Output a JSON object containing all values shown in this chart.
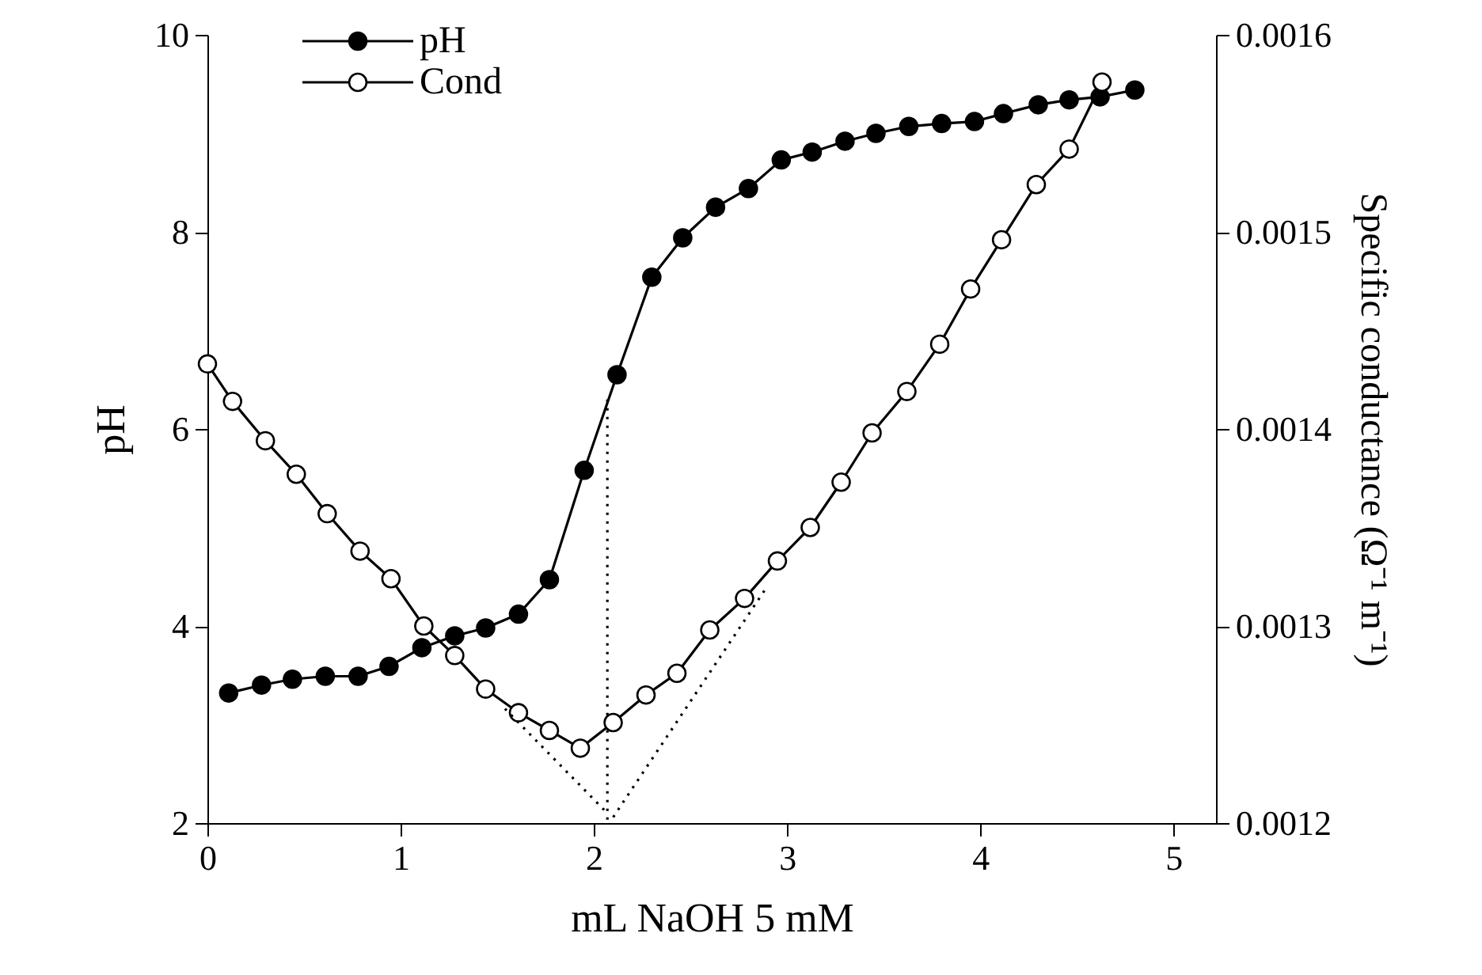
{
  "chart_data": {
    "type": "line",
    "xlabel": "mL NaOH 5 mM",
    "ylabel": "pH",
    "y2label": "Specific conductance  (Ω⁻¹ m⁻¹)",
    "xlim": [
      0,
      5.22
    ],
    "xticks": [
      0,
      1,
      2,
      3,
      4,
      5
    ],
    "ylim": [
      2,
      10
    ],
    "yticks": [
      2,
      4,
      6,
      8,
      10
    ],
    "y2lim": [
      0.0012,
      0.0016
    ],
    "y2ticks": [
      0.0012,
      0.0013,
      0.0014,
      0.0015,
      0.0016
    ],
    "grid": false,
    "legend": "top left",
    "marker": "circle",
    "line_style": "solid",
    "series": [
      {
        "name": "pH",
        "color": "#000000",
        "x": [
          0.11,
          0.28,
          0.44,
          0.61,
          0.78,
          0.94,
          1.11,
          1.28,
          1.44,
          1.61,
          1.77,
          1.95,
          2.12,
          2.3,
          2.46,
          2.63,
          2.8,
          2.97,
          3.13,
          3.3,
          3.46,
          3.63,
          3.8,
          3.97,
          4.12,
          4.3,
          4.46,
          4.62,
          4.8
        ],
        "values": [
          3.32,
          3.4,
          3.46,
          3.49,
          3.49,
          3.59,
          3.78,
          3.9,
          3.98,
          4.12,
          4.47,
          5.58,
          6.55,
          7.54,
          7.94,
          8.25,
          8.44,
          8.73,
          8.81,
          8.92,
          9.0,
          9.07,
          9.1,
          9.12,
          9.2,
          9.29,
          9.34,
          9.37,
          9.44
        ]
      },
      {
        "name": "Cond",
        "color": "#000000",
        "axis": "y2",
        "x": [
          0.0,
          0.13,
          0.3,
          0.46,
          0.62,
          0.79,
          0.95,
          1.12,
          1.28,
          1.44,
          1.61,
          1.77,
          1.93,
          2.1,
          2.27,
          2.43,
          2.6,
          2.78,
          2.95,
          3.12,
          3.28,
          3.44,
          3.62,
          3.79,
          3.95,
          4.11,
          4.29,
          4.46,
          4.63
        ],
        "values": [
          0.001433,
          0.001414,
          0.001394,
          0.001377,
          0.001357,
          0.001338,
          0.001324,
          0.0013,
          0.001285,
          0.001268,
          0.001256,
          0.001247,
          0.001238,
          0.001251,
          0.001265,
          0.001276,
          0.001298,
          0.001314,
          0.001333,
          0.00135,
          0.001373,
          0.001398,
          0.001419,
          0.001443,
          0.001471,
          0.001496,
          0.001524,
          0.001542,
          0.001576
        ]
      },
      {
        "type": "line",
        "color": "#000000",
        "line_style": "dotted",
        "marker": "none",
        "x": [
          2.07,
          2.07
        ],
        "values": [
          6.3,
          2
        ]
      },
      {
        "type": "line",
        "color": "#000000",
        "line_style": "dotted",
        "marker": "none",
        "axis": "y2",
        "x": [
          1.54,
          2.06
        ],
        "values": [
          0.001258,
          0.001206
        ]
      },
      {
        "type": "line",
        "color": "#000000",
        "line_style": "dotted",
        "marker": "none",
        "axis": "y2",
        "x": [
          2.1,
          2.89
        ],
        "values": [
          0.001203,
          0.001319
        ]
      }
    ]
  }
}
